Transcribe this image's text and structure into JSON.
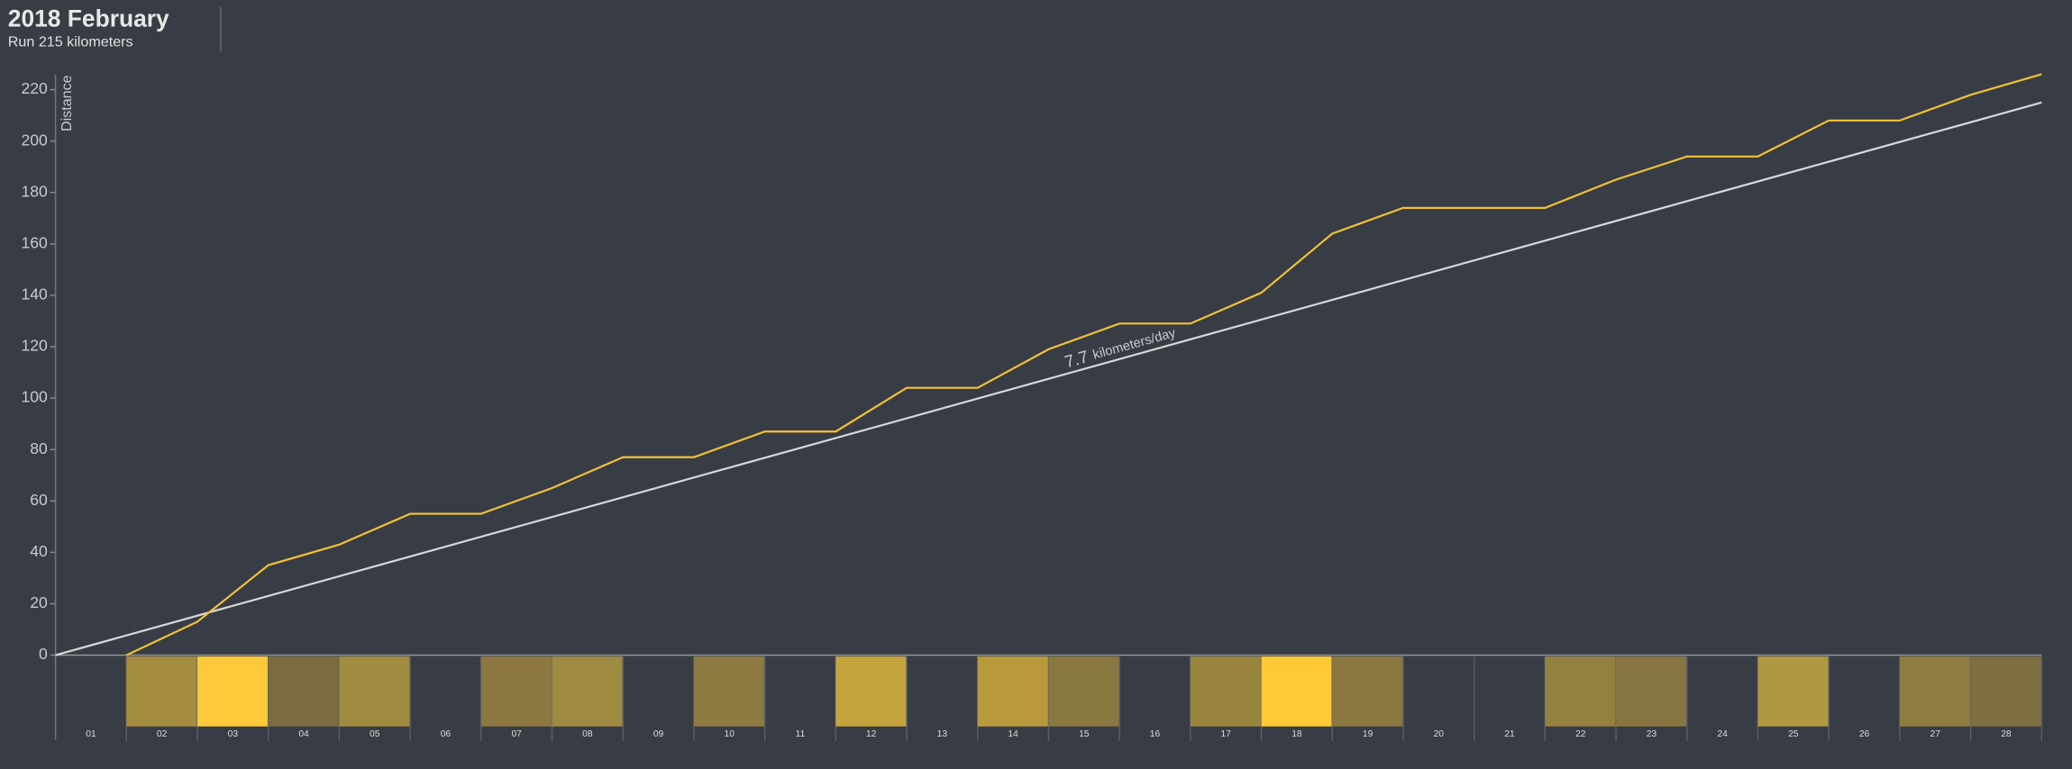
{
  "chart_data": {
    "type": "line",
    "title": "2018 February",
    "subtitle": "Run 215 kilometers",
    "y_label": "Distance",
    "ylim": [
      0,
      226
    ],
    "yticks": [
      0,
      20,
      40,
      60,
      80,
      100,
      120,
      140,
      160,
      180,
      200,
      220
    ],
    "xlim": [
      0,
      28
    ],
    "categories": [
      "01",
      "02",
      "03",
      "04",
      "05",
      "06",
      "07",
      "08",
      "09",
      "10",
      "11",
      "12",
      "13",
      "14",
      "15",
      "16",
      "17",
      "18",
      "19",
      "20",
      "21",
      "22",
      "23",
      "24",
      "25",
      "26",
      "27",
      "28"
    ],
    "cell_colors": [
      null,
      "#a58d40",
      "#fec93a",
      "#7b6b40",
      "#a08b40",
      null,
      "#8c7840",
      "#9e8a40",
      null,
      "#8d7a40",
      null,
      "#c4a43c",
      null,
      "#b89a3d",
      "#8a7841",
      null,
      "#9a853f",
      "#ffc938",
      "#8a7840",
      null,
      null,
      "#948040",
      "#877641",
      null,
      "#b19740",
      null,
      "#8f7c40",
      "#7e6f41"
    ],
    "series": [
      {
        "color": "#f2c236",
        "x": [
          1,
          2,
          3,
          4,
          5,
          6,
          7,
          8,
          9,
          10,
          11,
          12,
          13,
          14,
          15,
          16,
          17,
          18,
          19,
          20,
          21,
          22,
          23,
          24,
          25,
          26,
          27,
          28
        ],
        "values": [
          0,
          13,
          35,
          43,
          55,
          55,
          65,
          77,
          77,
          87,
          87,
          104,
          104,
          119,
          129,
          129,
          141,
          164,
          174,
          174,
          174,
          185,
          194,
          194,
          208,
          208,
          218,
          226
        ]
      },
      {
        "color": "#d8d8d8",
        "x": [
          0,
          28
        ],
        "values": [
          0,
          215
        ]
      }
    ],
    "target_rate": "7.7",
    "target_unit": "kilometers/day"
  }
}
